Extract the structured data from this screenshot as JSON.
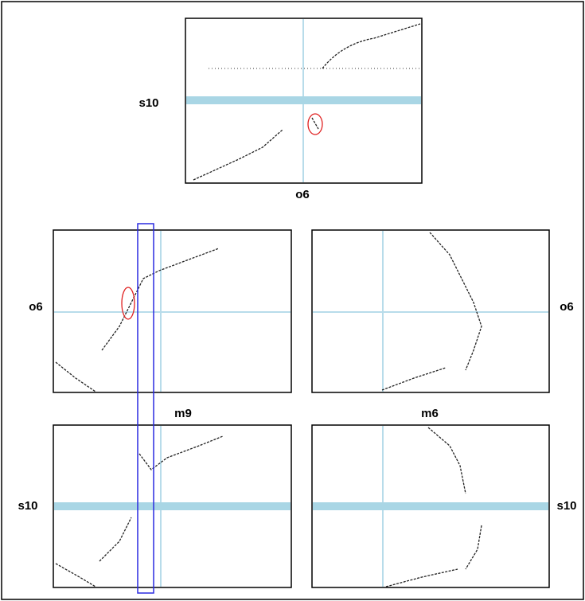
{
  "top_panel": {
    "left_label": "s10",
    "bottom_label": "o6"
  },
  "middle_left_panel": {
    "left_label": "o6",
    "bottom_label": "m9"
  },
  "middle_right_panel": {
    "right_label": "o6",
    "bottom_label": "m6"
  },
  "bottom_left_panel": {
    "left_label": "s10"
  },
  "bottom_right_panel": {
    "right_label": "s10"
  }
}
